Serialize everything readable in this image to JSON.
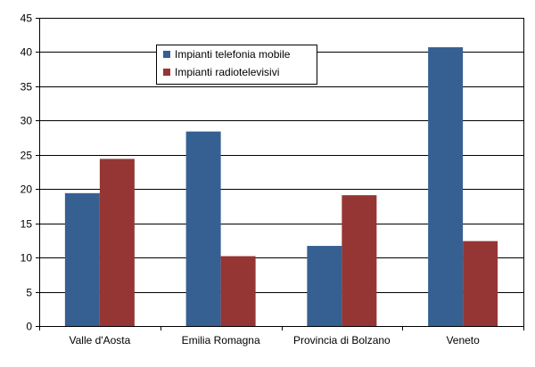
{
  "chart_data": {
    "type": "bar",
    "title": "",
    "xlabel": "",
    "ylabel": "",
    "categories": [
      "Valle d'Aosta",
      "Emilia Romagna",
      "Provincia di Bolzano",
      "Veneto"
    ],
    "series": [
      {
        "name": "Impianti telefonia mobile",
        "color": "#366092",
        "values": [
          19.4,
          28.4,
          11.7,
          40.7
        ]
      },
      {
        "name": "Impianti radiotelevisivi",
        "color": "#963634",
        "values": [
          24.4,
          10.2,
          19.1,
          12.4
        ]
      }
    ],
    "ylim": [
      0,
      45
    ],
    "yticks": [
      0,
      5,
      10,
      15,
      20,
      25,
      30,
      35,
      40,
      45
    ],
    "ytick_labels": [
      "0",
      "5",
      "10",
      "15",
      "20",
      "25",
      "30",
      "35",
      "40",
      "45"
    ],
    "grid": true,
    "legend": "top-center"
  }
}
